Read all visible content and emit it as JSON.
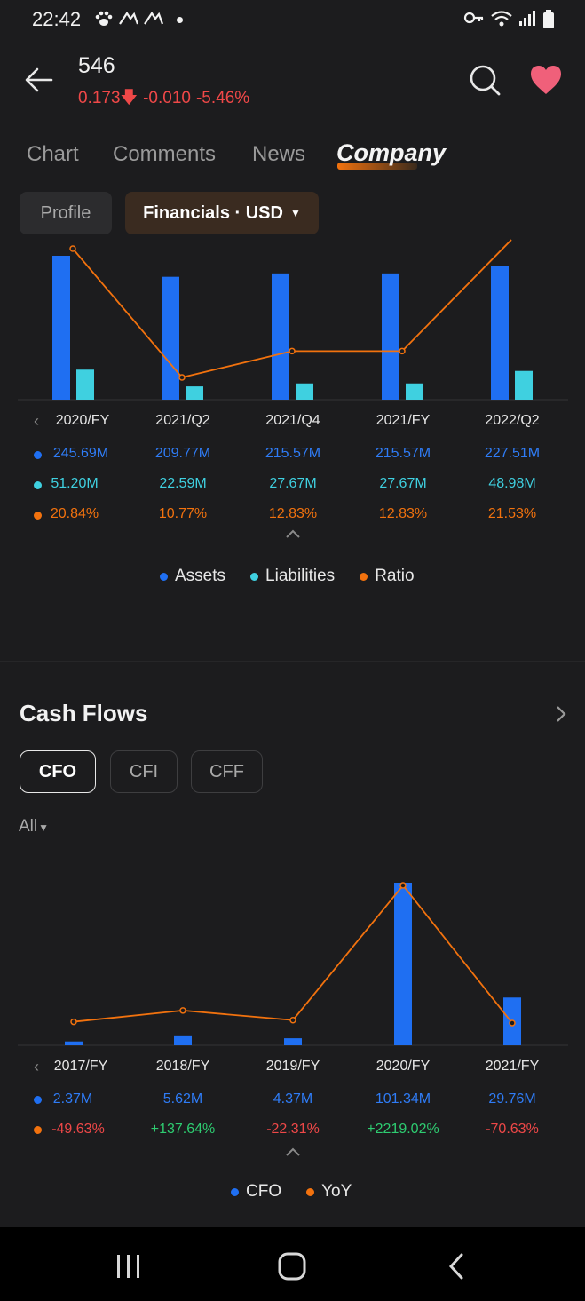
{
  "status_bar": {
    "time": "22:42"
  },
  "header": {
    "symbol": "546",
    "price": "0.173",
    "change": "-0.010",
    "change_pct": "-5.46%"
  },
  "tabs": [
    "Chart",
    "Comments",
    "News",
    "Company"
  ],
  "pills": {
    "profile": "Profile",
    "financials": "Financials · USD"
  },
  "colors": {
    "assets": "#1f6ff2",
    "liabilities": "#3fd0e0",
    "ratio": "#f2720e",
    "cfo": "#1f6ff2",
    "yoy": "#f2720e",
    "up": "#2ecc71",
    "down": "#ef4848"
  },
  "chart_data": [
    {
      "type": "bar",
      "categories": [
        "2020/FY",
        "2021/Q2",
        "2021/Q4",
        "2021/FY",
        "2022/Q2"
      ],
      "series": [
        {
          "name": "Assets",
          "values": [
            245.69,
            209.77,
            215.57,
            215.57,
            227.51
          ],
          "labels": [
            "245.69M",
            "209.77M",
            "215.57M",
            "215.57M",
            "227.51M"
          ]
        },
        {
          "name": "Liabilities",
          "values": [
            51.2,
            22.59,
            27.67,
            27.67,
            48.98
          ],
          "labels": [
            "51.20M",
            "22.59M",
            "27.67M",
            "27.67M",
            "48.98M"
          ]
        },
        {
          "name": "Ratio",
          "type": "line",
          "values": [
            20.84,
            10.77,
            12.83,
            12.83,
            21.53
          ],
          "labels": [
            "20.84%",
            "10.77%",
            "12.83%",
            "12.83%",
            "21.53%"
          ]
        }
      ]
    },
    {
      "type": "bar",
      "categories": [
        "2017/FY",
        "2018/FY",
        "2019/FY",
        "2020/FY",
        "2021/FY"
      ],
      "series": [
        {
          "name": "CFO",
          "values": [
            2.37,
            5.62,
            4.37,
            101.34,
            29.76
          ],
          "labels": [
            "2.37M",
            "5.62M",
            "4.37M",
            "101.34M",
            "29.76M"
          ]
        },
        {
          "name": "YoY",
          "type": "line",
          "values": [
            -49.63,
            137.64,
            -22.31,
            2219.02,
            -70.63
          ],
          "labels": [
            "-49.63%",
            "+137.64%",
            "-22.31%",
            "+2219.02%",
            "-70.63%"
          ]
        }
      ]
    }
  ],
  "legend1": [
    "Assets",
    "Liabilities",
    "Ratio"
  ],
  "cash_flows": {
    "title": "Cash Flows",
    "buttons": [
      "CFO",
      "CFI",
      "CFF"
    ],
    "filter": "All"
  },
  "legend2": [
    "CFO",
    "YoY"
  ]
}
